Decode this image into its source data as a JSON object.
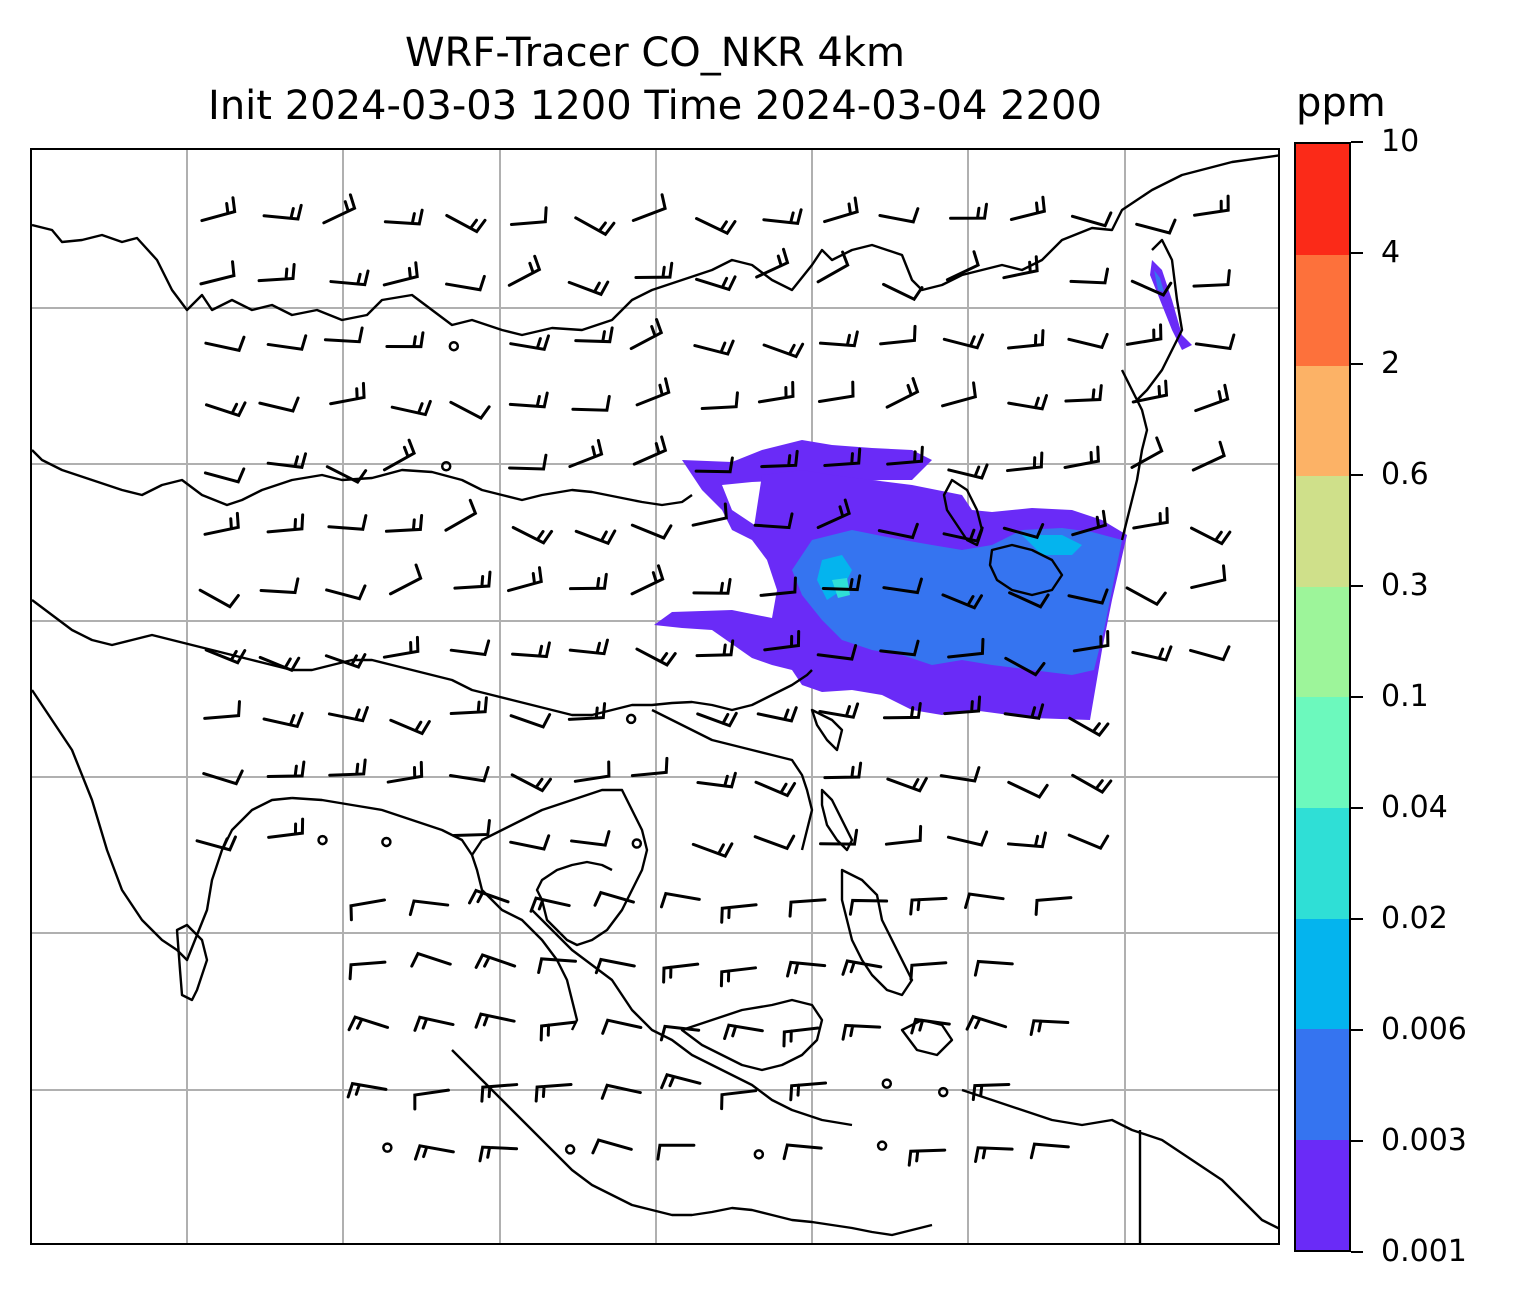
{
  "title": {
    "line1": "WRF-Tracer CO_NKR 4km",
    "line2": "Init 2024-03-03 1200 Time 2024-03-04 2200"
  },
  "colorbar": {
    "unit_label": "ppm",
    "ticks": [
      "0.001",
      "0.003",
      "0.006",
      "0.02",
      "0.04",
      "0.1",
      "0.3",
      "0.6",
      "2",
      "4",
      "10"
    ],
    "colors": [
      "#6a2bf7",
      "#3574f0",
      "#04b4ee",
      "#2fdfd6",
      "#6cf9bd",
      "#9df59a",
      "#cfe08a",
      "#fcb266",
      "#fd713b",
      "#fb2a18"
    ]
  },
  "map": {
    "gridline_color": "#b0b0b0",
    "coastline_color": "#000000",
    "plume_colors": {
      "level1": "#6a2bf7",
      "level2": "#3574f0",
      "level3": "#04b4ee",
      "level4": "#2fdfd6"
    }
  }
}
